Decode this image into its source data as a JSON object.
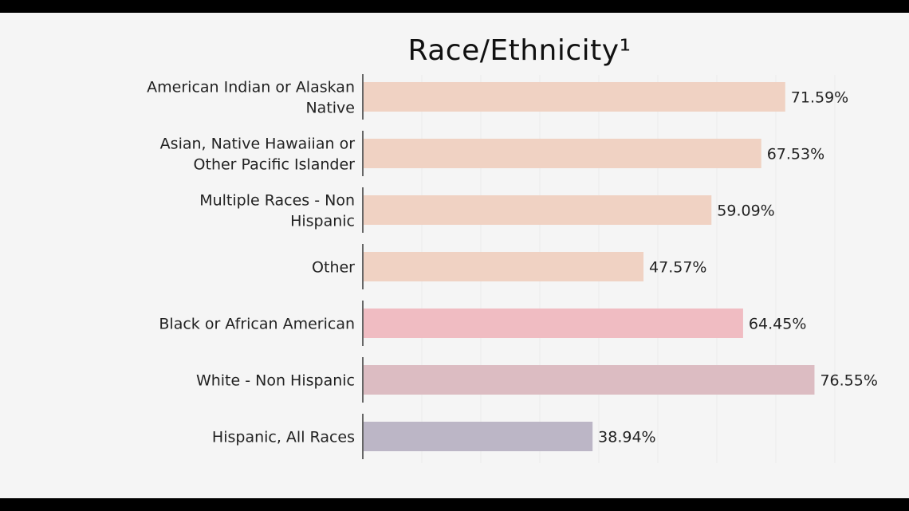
{
  "chart_data": {
    "type": "bar",
    "orientation": "horizontal",
    "title": "Race/Ethnicity¹",
    "xlabel": "",
    "ylabel": "",
    "xlim": [
      0,
      85
    ],
    "grid": true,
    "categories": [
      [
        "American Indian or Alaskan",
        "Native"
      ],
      [
        "Asian, Native Hawaiian or",
        "Other Pacific Islander"
      ],
      [
        "Multiple Races - Non",
        "Hispanic"
      ],
      [
        "Other"
      ],
      [
        "Black or African American"
      ],
      [
        "White - Non Hispanic"
      ],
      [
        "Hispanic, All Races"
      ]
    ],
    "values": [
      71.59,
      67.53,
      59.09,
      47.57,
      64.45,
      76.55,
      38.94
    ],
    "value_labels": [
      "71.59%",
      "67.53%",
      "59.09%",
      "47.57%",
      "64.45%",
      "76.55%",
      "38.94%"
    ],
    "colors": [
      "#f0d2c3",
      "#f0d2c3",
      "#f0d2c3",
      "#f0d2c3",
      "#f0bcc2",
      "#dcbcc2",
      "#bcb6c6"
    ]
  }
}
